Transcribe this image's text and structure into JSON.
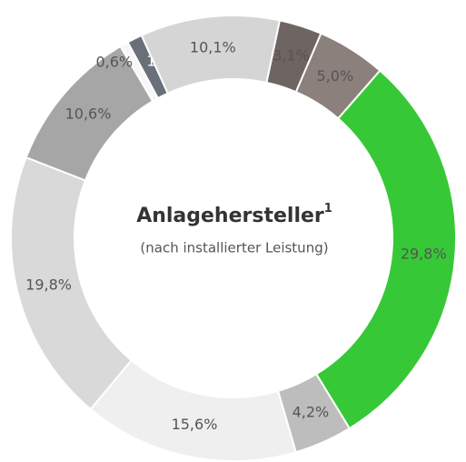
{
  "chart_data": {
    "type": "donut",
    "title": "Anlagehersteller",
    "title_superscript": "1",
    "subtitle": "(nach installierter Leistung)",
    "values": [
      3.1,
      5.0,
      29.8,
      4.2,
      15.6,
      19.8,
      10.6,
      0.6,
      1.1,
      10.1
    ],
    "value_labels": [
      "3,1%",
      "5,0%",
      "29,8%",
      "4,2%",
      "15,6%",
      "19,8%",
      "10,6%",
      "0,6%",
      "1,1%",
      "10,1%"
    ],
    "colors": [
      "#6e6462",
      "#8c807c",
      "#37c837",
      "#bdbdbd",
      "#efefef",
      "#d9d9d9",
      "#a6a6a6",
      "#f7f7f7",
      "#6a7079",
      "#d5d5d5"
    ]
  }
}
